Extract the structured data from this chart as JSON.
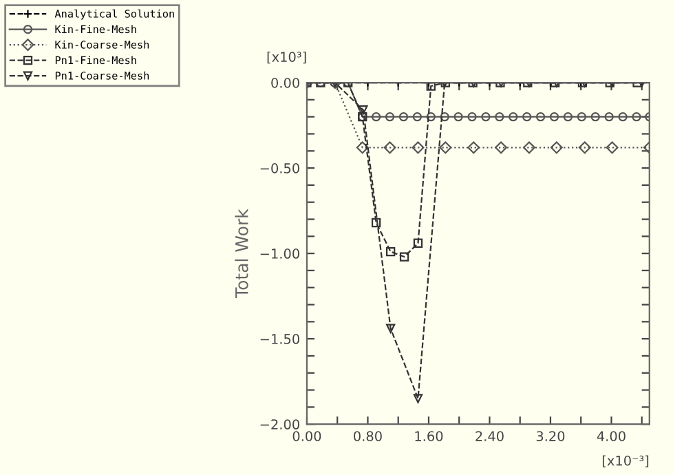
{
  "chart_data": {
    "type": "line",
    "ylabel": "Total Work",
    "annotations": [
      "[x10³]",
      "[x10⁻³]"
    ],
    "xlim": [
      0,
      4.5
    ],
    "ylim": [
      -2,
      0
    ],
    "xticks": [
      {
        "value": 0,
        "label": "0.00"
      },
      {
        "value": 0.4,
        "label": null
      },
      {
        "value": 0.8,
        "label": "0.80"
      },
      {
        "value": 1.2,
        "label": null
      },
      {
        "value": 1.6,
        "label": "1.60"
      },
      {
        "value": 2.0,
        "label": null
      },
      {
        "value": 2.4,
        "label": "2.40"
      },
      {
        "value": 2.8,
        "label": null
      },
      {
        "value": 3.2,
        "label": "3.20"
      },
      {
        "value": 3.6,
        "label": null
      },
      {
        "value": 4.0,
        "label": "4.00"
      },
      {
        "value": 4.4,
        "label": null
      }
    ],
    "yticks": [
      {
        "value": -2,
        "label": "−2.00"
      },
      {
        "value": -1.9,
        "label": null
      },
      {
        "value": -1.8,
        "label": null
      },
      {
        "value": -1.7,
        "label": null
      },
      {
        "value": -1.6,
        "label": null
      },
      {
        "value": -1.5,
        "label": "−1.50"
      },
      {
        "value": -1.4,
        "label": null
      },
      {
        "value": -1.3,
        "label": null
      },
      {
        "value": -1.2,
        "label": null
      },
      {
        "value": -1.1,
        "label": null
      },
      {
        "value": -1.0,
        "label": "−1.00"
      },
      {
        "value": -0.9,
        "label": null
      },
      {
        "value": -0.8,
        "label": null
      },
      {
        "value": -0.7,
        "label": null
      },
      {
        "value": -0.6,
        "label": null
      },
      {
        "value": -0.5,
        "label": "−0.50"
      },
      {
        "value": -0.4,
        "label": null
      },
      {
        "value": -0.3,
        "label": null
      },
      {
        "value": -0.2,
        "label": null
      },
      {
        "value": -0.1,
        "label": null
      },
      {
        "value": 0,
        "label": "0.00"
      }
    ],
    "grid": false,
    "legend": "top left",
    "series": [
      {
        "name": "Analytical Solution",
        "color": "#000000",
        "marker": "cross",
        "line_style": "dashed",
        "x": [
          0,
          0.4,
          0.8,
          1.2,
          1.6,
          2.0,
          2.4,
          2.8,
          3.2,
          3.6,
          4.0,
          4.4
        ],
        "values": [
          0,
          0,
          0,
          0,
          0,
          0,
          0,
          0,
          0,
          0,
          0,
          0
        ]
      },
      {
        "name": "Kin-Fine-Mesh",
        "color": "#555555",
        "marker": "circle",
        "line_style": "solid",
        "x": [
          0,
          0.18,
          0.36,
          0.54,
          0.73,
          0.91,
          1.09,
          1.27,
          1.45,
          1.63,
          1.81,
          1.99,
          2.17,
          2.35,
          2.53,
          2.71,
          2.89,
          3.07,
          3.25,
          3.43,
          3.61,
          3.79,
          3.97,
          4.15,
          4.33,
          4.5
        ],
        "values": [
          0,
          0,
          0,
          0,
          -0.2,
          -0.2,
          -0.2,
          -0.2,
          -0.2,
          -0.2,
          -0.2,
          -0.2,
          -0.2,
          -0.2,
          -0.2,
          -0.2,
          -0.2,
          -0.2,
          -0.2,
          -0.2,
          -0.2,
          -0.2,
          -0.2,
          -0.2,
          -0.2,
          -0.2
        ]
      },
      {
        "name": "Kin-Coarse-Mesh",
        "color": "#555555",
        "marker": "diamond",
        "line_style": "dotted",
        "x": [
          0,
          0.37,
          0.73,
          1.09,
          1.46,
          1.82,
          2.19,
          2.55,
          2.92,
          3.28,
          3.65,
          4.01,
          4.5
        ],
        "values": [
          0,
          0,
          -0.38,
          -0.38,
          -0.38,
          -0.38,
          -0.38,
          -0.38,
          -0.38,
          -0.38,
          -0.38,
          -0.38,
          -0.38
        ]
      },
      {
        "name": "Pn1-Fine-Mesh",
        "color": "#333333",
        "marker": "square",
        "line_style": "dashed",
        "x": [
          0,
          0.18,
          0.54,
          0.73,
          0.91,
          1.1,
          1.28,
          1.46,
          1.63,
          1.82,
          2.18,
          2.54,
          2.9,
          3.26,
          3.62,
          3.98,
          4.34
        ],
        "values": [
          0,
          0,
          0,
          -0.2,
          -0.82,
          -0.99,
          -1.02,
          -0.94,
          -0.02,
          0,
          0,
          0,
          0,
          0,
          0,
          0,
          0
        ]
      },
      {
        "name": "Pn1-Coarse-Mesh",
        "color": "#333333",
        "marker": "triangle",
        "line_style": "dashed",
        "x": [
          0,
          0.37,
          0.74,
          1.1,
          1.46,
          1.81,
          2.19,
          2.55,
          2.92,
          3.28,
          3.65,
          4.01,
          4.4
        ],
        "values": [
          0,
          0,
          -0.16,
          -1.44,
          -1.85,
          0,
          0,
          0,
          0,
          0,
          0,
          0,
          0
        ]
      }
    ]
  }
}
